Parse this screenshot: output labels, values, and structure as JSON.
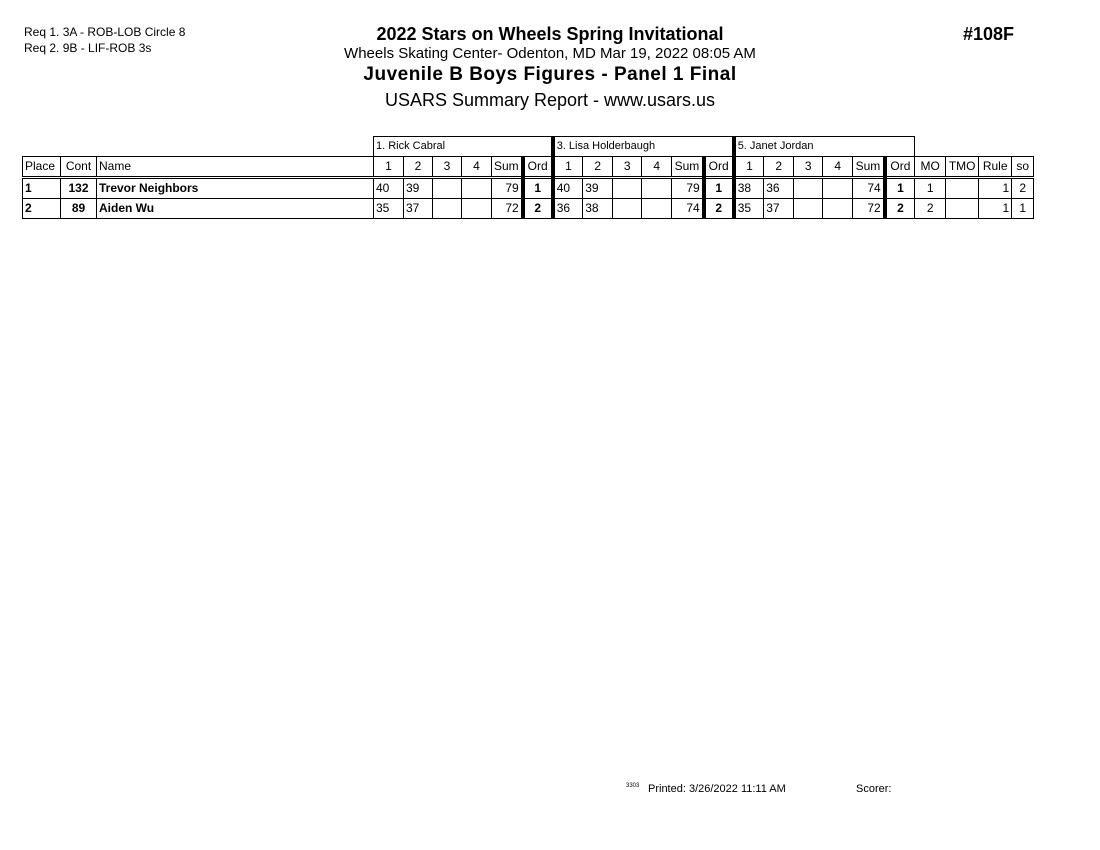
{
  "requirements": [
    "Req  1.  3A - ROB-LOB Circle 8",
    "Req  2.  9B - LIF-ROB 3s"
  ],
  "event_title": "2022 Stars on Wheels Spring Invitational",
  "venue_line": "Wheels Skating Center- Odenton, MD  Mar 19, 2022  08:05 AM",
  "event_number": "#108F",
  "division_title": "Juvenile B Boys Figures - Panel 1 Final",
  "report_title": "USARS Summary Report - www.usars.us",
  "judges": [
    "1.  Rick Cabral",
    "3.  Lisa Holderbaugh",
    "5.  Janet Jordan"
  ],
  "headers": {
    "place": "Place",
    "cont": "Cont",
    "name": "Name",
    "s1": "1",
    "s2": "2",
    "s3": "3",
    "s4": "4",
    "sum": "Sum",
    "ord": "Ord",
    "mo": "MO",
    "tmo": "TMO",
    "rule": "Rule",
    "so": "so"
  },
  "rows": [
    {
      "place": "1",
      "cont": "132",
      "name": "Trevor Neighbors",
      "j": [
        [
          "40",
          "39",
          "",
          "",
          "79",
          "1"
        ],
        [
          "40",
          "39",
          "",
          "",
          "79",
          "1"
        ],
        [
          "38",
          "36",
          "",
          "",
          "74",
          "1"
        ]
      ],
      "mo": "1",
      "tmo": "",
      "rule": "1",
      "so": "2"
    },
    {
      "place": "2",
      "cont": "89",
      "name": "Aiden Wu",
      "j": [
        [
          "35",
          "37",
          "",
          "",
          "72",
          "2"
        ],
        [
          "36",
          "38",
          "",
          "",
          "74",
          "2"
        ],
        [
          "35",
          "37",
          "",
          "",
          "72",
          "2"
        ]
      ],
      "mo": "2",
      "tmo": "",
      "rule": "1",
      "so": "1"
    }
  ],
  "footer": {
    "code": "3303",
    "printed": "Printed:  3/26/2022  11:11 AM",
    "scorer": "Scorer:"
  }
}
